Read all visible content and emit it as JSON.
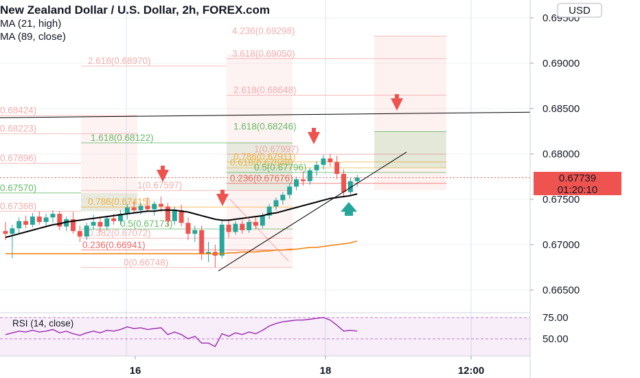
{
  "header": {
    "title": "New Zealand Dollar / U.S. Dollar, 2h, FOREX.com",
    "indicators": [
      "MA (21, high)",
      "MA (89, close)"
    ]
  },
  "currency_label": "USD",
  "last_price": "0.67739",
  "countdown": "01:20:10",
  "colors": {
    "up": "#26a69a",
    "down": "#ef5350",
    "ma21": "#000000",
    "ma89": "#f57c00",
    "rsi": "#9c27b0"
  },
  "chart_data": {
    "type": "candlestick",
    "title": "New Zealand Dollar / U.S. Dollar, 2h, FOREX.com",
    "ylim": [
      0.6625,
      0.6975
    ],
    "y_ticks": [
      "0.69500",
      "0.69000",
      "0.68500",
      "0.68000",
      "0.67500",
      "0.67000",
      "0.66500"
    ],
    "x_ticks": [
      "16",
      "18",
      "12:00"
    ],
    "candles": [
      {
        "o": 0.6715,
        "h": 0.6725,
        "l": 0.6705,
        "c": 0.6712
      },
      {
        "o": 0.6712,
        "h": 0.6722,
        "l": 0.6685,
        "c": 0.6718
      },
      {
        "o": 0.6718,
        "h": 0.673,
        "l": 0.6712,
        "c": 0.6726
      },
      {
        "o": 0.6726,
        "h": 0.6732,
        "l": 0.6718,
        "c": 0.6722
      },
      {
        "o": 0.6722,
        "h": 0.6735,
        "l": 0.6719,
        "c": 0.6731
      },
      {
        "o": 0.6731,
        "h": 0.6737,
        "l": 0.6722,
        "c": 0.6725
      },
      {
        "o": 0.6725,
        "h": 0.6734,
        "l": 0.672,
        "c": 0.673
      },
      {
        "o": 0.673,
        "h": 0.6738,
        "l": 0.6724,
        "c": 0.6734
      },
      {
        "o": 0.6734,
        "h": 0.6737,
        "l": 0.6716,
        "c": 0.672
      },
      {
        "o": 0.672,
        "h": 0.6731,
        "l": 0.6715,
        "c": 0.6728
      },
      {
        "o": 0.6728,
        "h": 0.6736,
        "l": 0.6712,
        "c": 0.6715
      },
      {
        "o": 0.6715,
        "h": 0.6721,
        "l": 0.6703,
        "c": 0.6709
      },
      {
        "o": 0.6709,
        "h": 0.6724,
        "l": 0.6705,
        "c": 0.6721
      },
      {
        "o": 0.6721,
        "h": 0.6733,
        "l": 0.6716,
        "c": 0.6725
      },
      {
        "o": 0.6725,
        "h": 0.6731,
        "l": 0.6714,
        "c": 0.672
      },
      {
        "o": 0.672,
        "h": 0.6732,
        "l": 0.6716,
        "c": 0.6729
      },
      {
        "o": 0.6729,
        "h": 0.6734,
        "l": 0.6722,
        "c": 0.6726
      },
      {
        "o": 0.6726,
        "h": 0.6738,
        "l": 0.6722,
        "c": 0.6734
      },
      {
        "o": 0.6734,
        "h": 0.6745,
        "l": 0.6728,
        "c": 0.6741
      },
      {
        "o": 0.6741,
        "h": 0.6748,
        "l": 0.6734,
        "c": 0.6738
      },
      {
        "o": 0.6738,
        "h": 0.6746,
        "l": 0.6733,
        "c": 0.6743
      },
      {
        "o": 0.6743,
        "h": 0.6752,
        "l": 0.6736,
        "c": 0.6739
      },
      {
        "o": 0.6739,
        "h": 0.6748,
        "l": 0.6732,
        "c": 0.6745
      },
      {
        "o": 0.6745,
        "h": 0.6753,
        "l": 0.6736,
        "c": 0.6742
      },
      {
        "o": 0.6742,
        "h": 0.6746,
        "l": 0.672,
        "c": 0.6726
      },
      {
        "o": 0.6726,
        "h": 0.6742,
        "l": 0.6722,
        "c": 0.6738
      },
      {
        "o": 0.6738,
        "h": 0.6744,
        "l": 0.672,
        "c": 0.6724
      },
      {
        "o": 0.6724,
        "h": 0.673,
        "l": 0.6705,
        "c": 0.6712
      },
      {
        "o": 0.6712,
        "h": 0.6721,
        "l": 0.6703,
        "c": 0.6716
      },
      {
        "o": 0.6716,
        "h": 0.6721,
        "l": 0.6683,
        "c": 0.669
      },
      {
        "o": 0.669,
        "h": 0.6703,
        "l": 0.6681,
        "c": 0.6692
      },
      {
        "o": 0.6692,
        "h": 0.67,
        "l": 0.6675,
        "c": 0.6688
      },
      {
        "o": 0.6688,
        "h": 0.6728,
        "l": 0.6685,
        "c": 0.6722
      },
      {
        "o": 0.6722,
        "h": 0.6728,
        "l": 0.6708,
        "c": 0.6714
      },
      {
        "o": 0.6714,
        "h": 0.6726,
        "l": 0.6711,
        "c": 0.6723
      },
      {
        "o": 0.6723,
        "h": 0.6727,
        "l": 0.6712,
        "c": 0.6716
      },
      {
        "o": 0.6716,
        "h": 0.6728,
        "l": 0.6713,
        "c": 0.6725
      },
      {
        "o": 0.6725,
        "h": 0.673,
        "l": 0.6717,
        "c": 0.6721
      },
      {
        "o": 0.6721,
        "h": 0.6735,
        "l": 0.6718,
        "c": 0.6732
      },
      {
        "o": 0.6732,
        "h": 0.6745,
        "l": 0.6728,
        "c": 0.6742
      },
      {
        "o": 0.6742,
        "h": 0.6752,
        "l": 0.6738,
        "c": 0.6749
      },
      {
        "o": 0.6749,
        "h": 0.6758,
        "l": 0.6744,
        "c": 0.6755
      },
      {
        "o": 0.6755,
        "h": 0.6768,
        "l": 0.6751,
        "c": 0.6764
      },
      {
        "o": 0.6764,
        "h": 0.6775,
        "l": 0.676,
        "c": 0.6772
      },
      {
        "o": 0.6772,
        "h": 0.6781,
        "l": 0.6765,
        "c": 0.677
      },
      {
        "o": 0.677,
        "h": 0.6785,
        "l": 0.6766,
        "c": 0.6782
      },
      {
        "o": 0.6782,
        "h": 0.6792,
        "l": 0.6776,
        "c": 0.6788
      },
      {
        "o": 0.6788,
        "h": 0.6799,
        "l": 0.6783,
        "c": 0.6795
      },
      {
        "o": 0.6795,
        "h": 0.68,
        "l": 0.6786,
        "c": 0.6791
      },
      {
        "o": 0.6791,
        "h": 0.6798,
        "l": 0.6772,
        "c": 0.6778
      },
      {
        "o": 0.6778,
        "h": 0.6783,
        "l": 0.6752,
        "c": 0.6758
      },
      {
        "o": 0.6758,
        "h": 0.6774,
        "l": 0.6754,
        "c": 0.677
      },
      {
        "o": 0.677,
        "h": 0.6777,
        "l": 0.6764,
        "c": 0.6774
      }
    ],
    "ma21_high": [
      0.6708,
      0.671,
      0.6712,
      0.6714,
      0.6716,
      0.6718,
      0.672,
      0.6722,
      0.6723,
      0.6725,
      0.6726,
      0.6727,
      0.6728,
      0.6729,
      0.673,
      0.6731,
      0.6732,
      0.6733,
      0.6734,
      0.6735,
      0.6736,
      0.6737,
      0.6737,
      0.6738,
      0.6738,
      0.6738,
      0.6737,
      0.6736,
      0.6734,
      0.6732,
      0.673,
      0.6728,
      0.6727,
      0.6727,
      0.6728,
      0.6729,
      0.673,
      0.6731,
      0.6732,
      0.6734,
      0.6735,
      0.6737,
      0.6739,
      0.6741,
      0.6743,
      0.6745,
      0.6747,
      0.6749,
      0.6751,
      0.6752,
      0.6753,
      0.6754,
      0.6756
    ],
    "ma89_close": [
      0.669,
      0.669,
      0.669,
      0.669,
      0.669,
      0.669,
      0.669,
      0.669,
      0.669,
      0.669,
      0.669,
      0.669,
      0.669,
      0.669,
      0.669,
      0.669,
      0.669,
      0.669,
      0.669,
      0.669,
      0.669,
      0.669,
      0.669,
      0.669,
      0.669,
      0.669,
      0.669,
      0.669,
      0.669,
      0.669,
      0.669,
      0.669,
      0.669,
      0.6691,
      0.6691,
      0.6692,
      0.6692,
      0.6692,
      0.6693,
      0.6693,
      0.6694,
      0.6694,
      0.6695,
      0.6695,
      0.6696,
      0.6697,
      0.6697,
      0.6698,
      0.6699,
      0.67,
      0.6701,
      0.6702,
      0.6704
    ],
    "rsi": {
      "label": "RSI (14, close)",
      "levels": [
        "75.00",
        "50.00"
      ],
      "ylim": [
        40,
        80
      ],
      "values": [
        55,
        57,
        59,
        58,
        60,
        58,
        59,
        61,
        57,
        59,
        56,
        54,
        57,
        59,
        57,
        60,
        59,
        61,
        64,
        62,
        63,
        61,
        62,
        63,
        55,
        58,
        55,
        50,
        53,
        45,
        45,
        41,
        56,
        53,
        57,
        55,
        58,
        56,
        60,
        65,
        68,
        70,
        71,
        72,
        72,
        73,
        74,
        75,
        72,
        66,
        59,
        60,
        59
      ]
    },
    "fib_levels": [
      {
        "label": "4.236(0.69298)",
        "price": 0.69298,
        "color": "#f2a0a0"
      },
      {
        "label": "3.618(0.69050)",
        "price": 0.6905,
        "color": "#f2a0a0"
      },
      {
        "label": "2.618(0.68970)",
        "price": 0.6897,
        "color": "#f2a0a0"
      },
      {
        "label": "2.618(0.68648)",
        "price": 0.68648,
        "color": "#f2a0a0"
      },
      {
        "label": "0.68424)",
        "price": 0.68424,
        "color": "#f2a0a0"
      },
      {
        "label": "1.618(0.68246)",
        "price": 0.68246,
        "color": "#4caf50"
      },
      {
        "label": "0.68223)",
        "price": 0.68223,
        "color": "#f2a0a0"
      },
      {
        "label": "1.618(0.68122)",
        "price": 0.68122,
        "color": "#4caf50"
      },
      {
        "label": "1(0.67997)",
        "price": 0.67997,
        "color": "#f2a0a0"
      },
      {
        "label": "0.786(0.67911)",
        "price": 0.67911,
        "color": "#f5a623"
      },
      {
        "label": "0.67896)",
        "price": 0.67896,
        "color": "#f2a0a0"
      },
      {
        "label": "0.618(0.67848)",
        "price": 0.67848,
        "color": "#e0b030"
      },
      {
        "label": "0.5(0.67796)",
        "price": 0.67796,
        "color": "#4caf50"
      },
      {
        "label": "0.236(0.67676)",
        "price": 0.67676,
        "color": "#ef5350"
      },
      {
        "label": "1(0.67597)",
        "price": 0.67597,
        "color": "#f2a0a0"
      },
      {
        "label": "0.67570)",
        "price": 0.6757,
        "color": "#4caf50"
      },
      {
        "label": "0.786(0.67415)",
        "price": 0.67415,
        "color": "#f5a623"
      },
      {
        "label": "0.67368)",
        "price": 0.67368,
        "color": "#f2a0a0"
      },
      {
        "label": "0.5(0.67173)",
        "price": 0.67173,
        "color": "#4caf50"
      },
      {
        "label": "0.382(0.67072)",
        "price": 0.67072,
        "color": "#f2a0a0"
      },
      {
        "label": "0.236(0.66941)",
        "price": 0.66941,
        "color": "#ef5350"
      },
      {
        "label": "0(0.66748)",
        "price": 0.66748,
        "color": "#f2a0a0"
      }
    ]
  }
}
